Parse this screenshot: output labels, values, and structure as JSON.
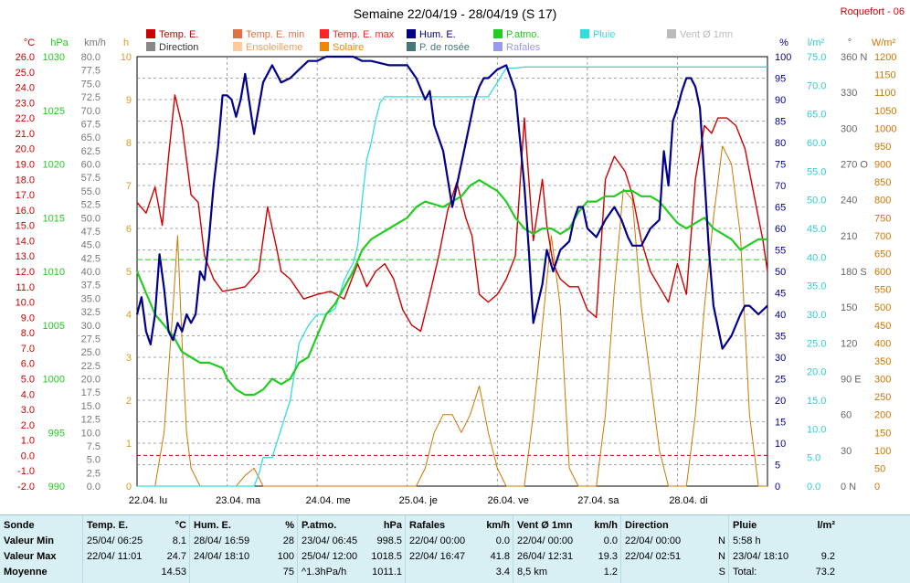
{
  "header": {
    "title": "Semaine 22/04/19 - 28/04/19 (S 17)",
    "station": "Roquefort - 06"
  },
  "colors": {
    "temp": "#cc0000",
    "hum": "#00008b",
    "patm": "#22cc22",
    "pluie": "#33dddd",
    "vent": "#aaaaaa",
    "rafales": "#8888dd",
    "solaire": "#cc7700",
    "ensoleillement": "#ffcc99",
    "rosee": "#335555",
    "temp_min": "#e07040",
    "temp_max": "#ff2222",
    "direction": "#888888"
  },
  "legend": [
    {
      "label": "Temp. E.",
      "color": "#cc0000"
    },
    {
      "label": "Temp. E. min",
      "color": "#e07040"
    },
    {
      "label": "Temp. E. max",
      "color": "#ff2222"
    },
    {
      "label": "Hum. E.",
      "color": "#00008b"
    },
    {
      "label": "P.atmo.",
      "color": "#22cc22"
    },
    {
      "label": "Pluie",
      "color": "#33dddd"
    },
    {
      "label": "Vent Ø 1mn",
      "color": "#bbbbbb"
    },
    {
      "label": "Direction",
      "color": "#888888"
    },
    {
      "label": "Ensoleilleme",
      "color": "#ffcc99"
    },
    {
      "label": "Solaire",
      "color": "#ee8800"
    },
    {
      "label": "P. de rosée",
      "color": "#447777"
    },
    {
      "label": "Rafales",
      "color": "#9999ee"
    }
  ],
  "chart_data": {
    "type": "line",
    "x_labels": [
      "22.04.  lu",
      "23.04.  ma",
      "24.04.  me",
      "25.04.  je",
      "26.04.  ve",
      "27.04.  sa",
      "28.04.  di"
    ],
    "xlim_days": [
      0,
      7
    ],
    "axes": {
      "temp": {
        "unit": "°C",
        "min": -2.0,
        "max": 26.0,
        "ticks": [
          "26.0",
          "25.0",
          "24.0",
          "23.0",
          "22.0",
          "21.0",
          "20.0",
          "19.0",
          "18.0",
          "17.0",
          "16.0",
          "15.0",
          "14.0",
          "13.0",
          "12.0",
          "11.0",
          "10.0",
          "9.0",
          "8.0",
          "7.0",
          "6.0",
          "5.0",
          "4.0",
          "3.0",
          "2.0",
          "1.0",
          "0.0",
          "-1.0",
          "-2.0"
        ]
      },
      "patm": {
        "unit": "hPa",
        "min": 990,
        "max": 1030,
        "ticks": [
          "1030",
          "1025",
          "1020",
          "1015",
          "1010",
          "1005",
          "1000",
          "995",
          "990"
        ]
      },
      "wind": {
        "unit": "km/h",
        "min": 0,
        "max": 80,
        "ticks": [
          "80.0",
          "77.5",
          "75.0",
          "72.5",
          "70.0",
          "67.5",
          "65.0",
          "62.5",
          "60.0",
          "57.5",
          "55.0",
          "52.5",
          "50.0",
          "47.5",
          "45.0",
          "42.5",
          "40.0",
          "37.5",
          "35.0",
          "32.5",
          "30.0",
          "27.5",
          "25.0",
          "22.5",
          "20.0",
          "17.5",
          "15.0",
          "12.5",
          "10.0",
          "7.5",
          "5.0",
          "2.5",
          "0.0"
        ]
      },
      "sun": {
        "unit": "h",
        "min": 0,
        "max": 10,
        "ticks": [
          "10",
          "9",
          "8",
          "7",
          "6",
          "5",
          "4",
          "3",
          "2",
          "1",
          "0"
        ]
      },
      "hum": {
        "unit": "%",
        "min": 0,
        "max": 100,
        "ticks": [
          "100",
          "95",
          "90",
          "85",
          "80",
          "75",
          "70",
          "65",
          "60",
          "55",
          "50",
          "45",
          "40",
          "35",
          "30",
          "25",
          "20",
          "15",
          "10",
          "5",
          "0"
        ]
      },
      "rain": {
        "unit": "l/m²",
        "min": 0,
        "max": 75,
        "ticks": [
          "75.0",
          "70.0",
          "65.0",
          "60.0",
          "55.0",
          "50.0",
          "45.0",
          "40.0",
          "35.0",
          "30.0",
          "25.0",
          "20.0",
          "15.0",
          "10.0",
          "5.0",
          "0.0"
        ]
      },
      "dir": {
        "unit": "°",
        "min": 0,
        "max": 360,
        "ticks": [
          "360 N",
          "330",
          "300",
          "270 O",
          "240",
          "210",
          "180 S",
          "150",
          "120",
          "90 E",
          "60",
          "30",
          "0 N"
        ]
      },
      "solar": {
        "unit": "W/m²",
        "min": 0,
        "max": 1200,
        "ticks": [
          "1200",
          "1150",
          "1100",
          "1050",
          "1000",
          "950",
          "900",
          "850",
          "800",
          "750",
          "700",
          "650",
          "600",
          "550",
          "500",
          "450",
          "400",
          "350",
          "300",
          "250",
          "200",
          "150",
          "100",
          "50",
          "0"
        ]
      }
    },
    "series": [
      {
        "name": "Temp. E.",
        "axis": "temp",
        "x": [
          0,
          0.1,
          0.2,
          0.28,
          0.35,
          0.42,
          0.5,
          0.6,
          0.68,
          0.75,
          0.85,
          0.95,
          1.05,
          1.2,
          1.35,
          1.45,
          1.55,
          1.6,
          1.7,
          1.85,
          2.0,
          2.15,
          2.3,
          2.45,
          2.55,
          2.65,
          2.75,
          2.85,
          2.95,
          3.05,
          3.15,
          3.25,
          3.35,
          3.45,
          3.55,
          3.65,
          3.72,
          3.8,
          3.9,
          4.0,
          4.1,
          4.2,
          4.3,
          4.4,
          4.5,
          4.55,
          4.62,
          4.7,
          4.8,
          4.9,
          5.0,
          5.1,
          5.2,
          5.3,
          5.42,
          5.5,
          5.6,
          5.7,
          5.8,
          5.9,
          6.0,
          6.1,
          6.2,
          6.3,
          6.38,
          6.45,
          6.55,
          6.65,
          6.75,
          6.85,
          6.95,
          7.0
        ],
        "y": [
          16.5,
          15.8,
          17.5,
          15.0,
          19.5,
          23.5,
          21.5,
          17.0,
          16.5,
          13.0,
          11.5,
          10.7,
          10.8,
          11.0,
          12.0,
          16.2,
          13.5,
          12.0,
          11.5,
          10.2,
          10.5,
          10.7,
          10.2,
          12.5,
          11.0,
          12.0,
          12.5,
          11.5,
          9.5,
          8.5,
          8.1,
          10.5,
          13.0,
          16.0,
          17.8,
          15.5,
          14.3,
          10.5,
          10.0,
          10.5,
          11.5,
          13.0,
          22.0,
          14.0,
          18.0,
          15.0,
          12.5,
          11.5,
          11.0,
          11.0,
          9.5,
          9.0,
          18.0,
          19.5,
          18.5,
          17.0,
          14.0,
          12.0,
          11.0,
          10.0,
          12.5,
          10.5,
          18.0,
          21.5,
          21.0,
          22.0,
          22.0,
          21.5,
          20.0,
          17.0,
          14.0,
          12.0
        ]
      },
      {
        "name": "Hum. E.",
        "axis": "hum",
        "x": [
          0,
          0.05,
          0.1,
          0.15,
          0.2,
          0.25,
          0.3,
          0.35,
          0.4,
          0.45,
          0.5,
          0.55,
          0.6,
          0.65,
          0.7,
          0.75,
          0.8,
          0.85,
          0.9,
          0.95,
          1.0,
          1.05,
          1.1,
          1.15,
          1.2,
          1.3,
          1.4,
          1.5,
          1.55,
          1.6,
          1.7,
          1.8,
          1.9,
          2.0,
          2.1,
          2.2,
          2.3,
          2.4,
          2.5,
          2.6,
          2.8,
          3.0,
          3.1,
          3.2,
          3.25,
          3.3,
          3.4,
          3.5,
          3.6,
          3.7,
          3.75,
          3.8,
          3.85,
          3.9,
          4.0,
          4.1,
          4.2,
          4.3,
          4.35,
          4.4,
          4.5,
          4.55,
          4.62,
          4.7,
          4.8,
          4.85,
          4.9,
          4.95,
          5.0,
          5.1,
          5.2,
          5.3,
          5.38,
          5.45,
          5.5,
          5.6,
          5.7,
          5.8,
          5.85,
          5.9,
          5.95,
          6.0,
          6.05,
          6.1,
          6.15,
          6.2,
          6.25,
          6.3,
          6.35,
          6.4,
          6.5,
          6.6,
          6.7,
          6.75,
          6.8,
          6.9,
          7.0
        ],
        "y": [
          40,
          44,
          36,
          33,
          40,
          54,
          46,
          36,
          34,
          38,
          36,
          40,
          38,
          40,
          50,
          48,
          58,
          70,
          79,
          91,
          91,
          90,
          86,
          90,
          96,
          82,
          94,
          98,
          96,
          94,
          95,
          97,
          99,
          99,
          100,
          100,
          100,
          100,
          99,
          99,
          98,
          98,
          95,
          90,
          92,
          84,
          78,
          65,
          75,
          85,
          90,
          93,
          95,
          95,
          97,
          98,
          92,
          70,
          55,
          38,
          47,
          55,
          50,
          55,
          57,
          62,
          65,
          65,
          60,
          58,
          62,
          65,
          62,
          58,
          56,
          56,
          60,
          62,
          78,
          70,
          85,
          88,
          92,
          95,
          95,
          93,
          88,
          72,
          55,
          42,
          32,
          35,
          40,
          42,
          42,
          40,
          42
        ]
      },
      {
        "name": "P.atmo.",
        "axis": "patm",
        "x": [
          0,
          0.2,
          0.4,
          0.5,
          0.6,
          0.7,
          0.8,
          0.95,
          1.0,
          1.1,
          1.2,
          1.3,
          1.4,
          1.5,
          1.6,
          1.7,
          1.8,
          1.9,
          2.0,
          2.1,
          2.2,
          2.3,
          2.4,
          2.5,
          2.6,
          2.8,
          3.0,
          3.1,
          3.2,
          3.4,
          3.5,
          3.6,
          3.7,
          3.8,
          3.9,
          4.0,
          4.1,
          4.2,
          4.3,
          4.4,
          4.5,
          4.6,
          4.7,
          4.8,
          4.9,
          5.0,
          5.1,
          5.2,
          5.3,
          5.4,
          5.5,
          5.6,
          5.7,
          5.8,
          5.9,
          6.0,
          6.1,
          6.2,
          6.3,
          6.4,
          6.5,
          6.6,
          6.7,
          6.8,
          6.9,
          7.0
        ],
        "y": [
          1010,
          1006,
          1004,
          1002.5,
          1002,
          1001.5,
          1001.5,
          1001,
          1000,
          999,
          998.5,
          998.5,
          999,
          1000,
          999.5,
          1000,
          1001.5,
          1002,
          1004,
          1006,
          1007,
          1008.5,
          1010,
          1012,
          1013,
          1014,
          1015,
          1016,
          1016.5,
          1016,
          1016.5,
          1017,
          1018,
          1018.5,
          1018,
          1017.5,
          1016.5,
          1015,
          1014,
          1013.5,
          1014,
          1014,
          1013.5,
          1014,
          1015.5,
          1016.5,
          1016.5,
          1017,
          1017,
          1017.5,
          1017.5,
          1017,
          1017,
          1016.5,
          1015.5,
          1014.5,
          1014,
          1014.5,
          1015,
          1014,
          1013.5,
          1013,
          1012,
          1012.5,
          1013,
          1013
        ]
      },
      {
        "name": "Pluie",
        "axis": "rain",
        "x": [
          0,
          1.3,
          1.35,
          1.4,
          1.5,
          1.6,
          1.7,
          1.8,
          1.9,
          2.0,
          2.1,
          2.2,
          2.3,
          2.4,
          2.45,
          2.5,
          2.55,
          2.6,
          2.65,
          2.7,
          2.75,
          2.8,
          2.9,
          3.0,
          3.2,
          3.4,
          3.6,
          3.8,
          3.9,
          4.1,
          4.2,
          4.3,
          4.35,
          7.0
        ],
        "y": [
          0,
          0,
          2,
          5,
          5,
          10,
          15,
          25,
          28,
          30,
          30,
          31,
          36,
          39,
          42,
          50,
          57,
          60,
          64,
          67,
          68,
          68,
          68,
          68,
          68,
          68,
          68,
          68,
          68,
          73,
          73,
          73.2,
          73.2,
          73.2
        ]
      },
      {
        "name": "Solaire",
        "axis": "solar",
        "x": [
          0,
          0.2,
          0.3,
          0.4,
          0.45,
          0.5,
          0.55,
          0.6,
          0.7,
          0.8,
          0.9,
          1.0,
          1.1,
          1.2,
          1.3,
          1.4,
          1.5,
          1.6,
          1.7,
          1.8,
          1.9,
          2.0,
          2.1,
          2.2,
          2.3,
          2.4,
          2.5,
          2.6,
          2.7,
          2.8,
          2.9,
          3.0,
          3.1,
          3.2,
          3.3,
          3.4,
          3.5,
          3.6,
          3.7,
          3.8,
          3.9,
          4.0,
          4.1,
          4.2,
          4.3,
          4.4,
          4.5,
          4.6,
          4.7,
          4.8,
          4.9,
          5.0,
          5.1,
          5.2,
          5.3,
          5.4,
          5.5,
          5.6,
          5.7,
          5.8,
          5.9,
          6.0,
          6.1,
          6.2,
          6.3,
          6.4,
          6.5,
          6.6,
          6.7,
          6.8,
          6.9,
          7.0
        ],
        "y": [
          0,
          0,
          150,
          500,
          700,
          400,
          150,
          50,
          0,
          0,
          0,
          0,
          0,
          30,
          50,
          0,
          0,
          0,
          0,
          0,
          0,
          0,
          0,
          0,
          0,
          0,
          0,
          0,
          0,
          0,
          0,
          0,
          0,
          50,
          150,
          200,
          200,
          150,
          200,
          280,
          150,
          50,
          0,
          0,
          0,
          200,
          450,
          700,
          500,
          50,
          0,
          0,
          0,
          200,
          550,
          830,
          800,
          500,
          300,
          100,
          0,
          0,
          0,
          200,
          500,
          750,
          950,
          900,
          700,
          200,
          0,
          0
        ]
      }
    ],
    "stats": {
      "rows": [
        "Sonde",
        "Valeur Min",
        "Valeur Max",
        "Moyenne"
      ],
      "blocks": [
        {
          "title": "Temp. E.",
          "unit": "°C",
          "min_date": "25/04/  06:25",
          "min_val": "8.1",
          "max_date": "22/04/  11:01",
          "max_val": "24.7",
          "avg_label": "",
          "avg_val": "14.53"
        },
        {
          "title": "Hum. E.",
          "unit": "%",
          "min_date": "28/04/  16:59",
          "min_val": "28",
          "max_date": "24/04/  18:10",
          "max_val": "100",
          "avg_label": "",
          "avg_val": "75"
        },
        {
          "title": "P.atmo.",
          "unit": "hPa",
          "min_date": "23/04/  06:45",
          "min_val": "998.5",
          "max_date": "25/04/  12:00",
          "max_val": "1018.5",
          "avg_label": "^1.3hPa/h",
          "avg_val": "1011.1"
        },
        {
          "title": "Rafales",
          "unit": "km/h",
          "min_date": "22/04/  00:00",
          "min_val": "0.0",
          "max_date": "22/04/  16:47",
          "max_val": "41.8",
          "avg_label": "",
          "avg_val": "3.4"
        },
        {
          "title": "Vent Ø 1mn",
          "unit": "km/h",
          "min_date": "22/04/  00:00",
          "min_val": "0.0",
          "max_date": "26/04/  12:31",
          "max_val": "19.3",
          "avg_label": "8,5 km",
          "avg_val": "1.2"
        },
        {
          "title": "Direction",
          "unit": "",
          "min_date": "22/04/  00:00",
          "min_val": "N",
          "max_date": "22/04/  02:51",
          "max_val": "N",
          "avg_label": "",
          "avg_val": "S"
        },
        {
          "title": "Pluie",
          "unit": "l/m²",
          "min_date": "5:58 h",
          "min_val": "",
          "max_date": "23/04/  18:10",
          "max_val": "9.2",
          "avg_label": "Total:",
          "avg_val": "73.2"
        }
      ]
    }
  }
}
